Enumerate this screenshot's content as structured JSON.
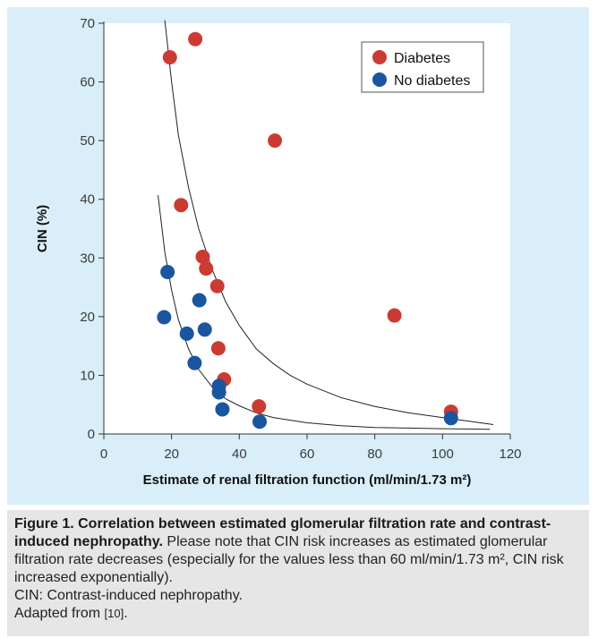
{
  "chart_data": {
    "type": "scatter",
    "xlabel": "Estimate of renal filtration function (ml/min/1.73 m²)",
    "ylabel": "CIN (%)",
    "xlim": [
      0,
      120
    ],
    "ylim": [
      0,
      70
    ],
    "x_ticks": [
      "0",
      "20",
      "40",
      "60",
      "80",
      "100",
      "120"
    ],
    "y_ticks": [
      "0",
      "10",
      "20",
      "30",
      "40",
      "50",
      "60",
      "70"
    ],
    "legend_position": "top-right",
    "series": [
      {
        "name": "Diabetes",
        "color": "#cc3b33",
        "points": [
          {
            "x": 27,
            "y": 67.3
          },
          {
            "x": 19.5,
            "y": 64.2
          },
          {
            "x": 50.5,
            "y": 50
          },
          {
            "x": 22.8,
            "y": 39
          },
          {
            "x": 29.2,
            "y": 30.2
          },
          {
            "x": 30.2,
            "y": 28.2
          },
          {
            "x": 33.5,
            "y": 25.2
          },
          {
            "x": 85.8,
            "y": 20.2
          },
          {
            "x": 33.8,
            "y": 14.6
          },
          {
            "x": 35.5,
            "y": 9.3
          },
          {
            "x": 45.8,
            "y": 4.7
          },
          {
            "x": 102.5,
            "y": 3.8
          }
        ]
      },
      {
        "name": "No diabetes",
        "color": "#1a56a0",
        "points": [
          {
            "x": 18.8,
            "y": 27.6
          },
          {
            "x": 28.2,
            "y": 22.8
          },
          {
            "x": 17.8,
            "y": 19.9
          },
          {
            "x": 29.8,
            "y": 17.8
          },
          {
            "x": 24.5,
            "y": 17.1
          },
          {
            "x": 26.8,
            "y": 12.1
          },
          {
            "x": 34,
            "y": 8.2
          },
          {
            "x": 34,
            "y": 7.1
          },
          {
            "x": 35,
            "y": 4.2
          },
          {
            "x": 46,
            "y": 2.1
          },
          {
            "x": 102.5,
            "y": 2.7
          }
        ]
      }
    ],
    "trend_curves": [
      {
        "series": "Diabetes",
        "points": [
          [
            18,
            70.5
          ],
          [
            20,
            60
          ],
          [
            22,
            51
          ],
          [
            25,
            42
          ],
          [
            28,
            35
          ],
          [
            32,
            28
          ],
          [
            36,
            22.5
          ],
          [
            40,
            18.5
          ],
          [
            45,
            14.5
          ],
          [
            50,
            12
          ],
          [
            55,
            10
          ],
          [
            60,
            8.5
          ],
          [
            70,
            6.2
          ],
          [
            80,
            4.7
          ],
          [
            90,
            3.6
          ],
          [
            100,
            2.8
          ],
          [
            110,
            2
          ],
          [
            115,
            1.6
          ]
        ]
      },
      {
        "series": "No diabetes",
        "points": [
          [
            16,
            40.7
          ],
          [
            18,
            31
          ],
          [
            20,
            24.5
          ],
          [
            22,
            19.5
          ],
          [
            25,
            14.5
          ],
          [
            28,
            11
          ],
          [
            32,
            8
          ],
          [
            36,
            6
          ],
          [
            40,
            4.8
          ],
          [
            45,
            3.6
          ],
          [
            50,
            2.8
          ],
          [
            60,
            1.9
          ],
          [
            70,
            1.4
          ],
          [
            80,
            1.1
          ],
          [
            90,
            1
          ],
          [
            100,
            0.9
          ],
          [
            114,
            0.8
          ]
        ]
      }
    ]
  },
  "caption": {
    "title": "Figure 1. Correlation between estimated glomerular filtration rate and contrast-induced nephropathy.",
    "body": "Please note that CIN risk increases as estimated glomerular filtration rate decreases (especially for the values less than 60 ml/min/1.73 m², CIN risk increased exponentially).",
    "abbreviation": "CIN: Contrast-induced nephropathy.",
    "source_prefix": "Adapted from ",
    "source_ref": "[10]",
    "source_suffix": "."
  }
}
